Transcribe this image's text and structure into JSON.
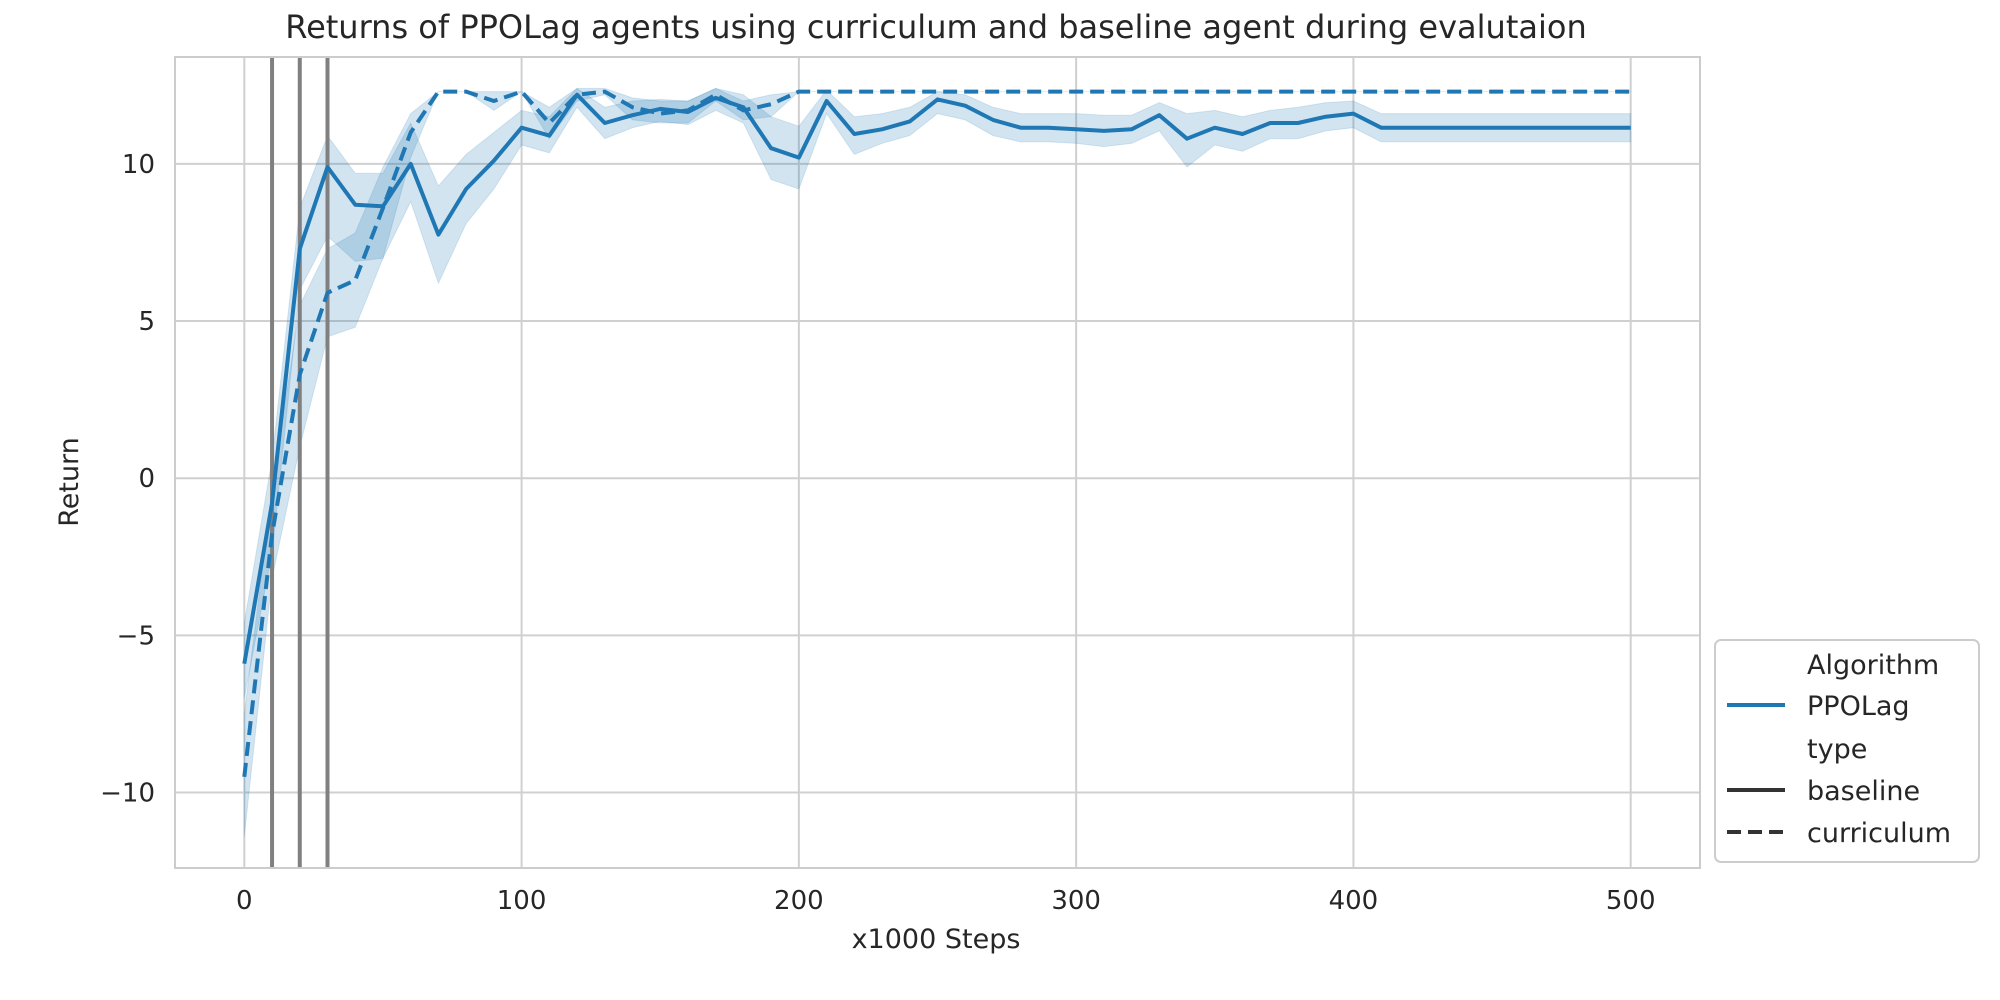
{
  "chart_data": {
    "type": "line",
    "title": "Returns of PPOLag agents using curriculum and baseline agent during evalutaion",
    "xlabel": "x1000 Steps",
    "ylabel": "Return",
    "xlim": [
      -25,
      525
    ],
    "ylim": [
      -12.4,
      13.4
    ],
    "xticks": [
      0,
      100,
      200,
      300,
      400,
      500
    ],
    "yticks": [
      -10,
      -5,
      0,
      5,
      10
    ],
    "xtick_labels": [
      "0",
      "100",
      "200",
      "300",
      "400",
      "500"
    ],
    "ytick_labels": [
      "−10",
      "−5",
      "0",
      "5",
      "10"
    ],
    "grid": true,
    "legend_position": "lower-right outside",
    "vlines": [
      10,
      20,
      30
    ],
    "colors": {
      "series": "#1f77b4",
      "band": "#1f77b4",
      "vline": "#808080",
      "grid": "#d0d0d0",
      "axis": "#cccccc",
      "legend_dark": "#333333"
    },
    "legend": {
      "header_algorithm": "Algorithm",
      "algorithm_entry": "PPOLag",
      "header_type": "type",
      "type_entry_solid": "baseline",
      "type_entry_dashed": "curriculum"
    },
    "x": [
      0,
      10,
      20,
      30,
      40,
      50,
      60,
      70,
      80,
      90,
      100,
      110,
      120,
      130,
      140,
      150,
      160,
      170,
      180,
      190,
      200,
      210,
      220,
      230,
      240,
      250,
      260,
      270,
      280,
      290,
      300,
      310,
      320,
      330,
      340,
      350,
      360,
      370,
      380,
      390,
      400,
      410,
      420,
      430,
      440,
      450,
      460,
      470,
      480,
      490,
      500
    ],
    "series": [
      {
        "name": "baseline",
        "style": "solid",
        "values": [
          -5.9,
          -0.8,
          7.3,
          9.9,
          8.7,
          8.65,
          10.0,
          7.75,
          9.2,
          10.1,
          11.15,
          10.9,
          12.2,
          11.3,
          11.55,
          11.75,
          11.65,
          12.1,
          11.8,
          10.5,
          10.2,
          12.0,
          10.95,
          11.1,
          11.35,
          12.05,
          11.85,
          11.4,
          11.15,
          11.15,
          11.1,
          11.05,
          11.1,
          11.55,
          10.8,
          11.15,
          10.95,
          11.3,
          11.3,
          11.5,
          11.6,
          11.15,
          11.15,
          11.15,
          11.15,
          11.15,
          11.15,
          11.15,
          11.15,
          11.15,
          11.15
        ],
        "lower": [
          -7.0,
          -2.4,
          6.0,
          7.7,
          6.9,
          7.0,
          8.8,
          6.2,
          8.1,
          9.2,
          10.6,
          10.35,
          11.8,
          10.8,
          11.15,
          11.35,
          11.25,
          11.7,
          11.3,
          9.5,
          9.2,
          11.6,
          10.3,
          10.65,
          10.9,
          11.6,
          11.4,
          10.9,
          10.7,
          10.7,
          10.65,
          10.55,
          10.65,
          11.05,
          9.9,
          10.6,
          10.4,
          10.8,
          10.8,
          11.05,
          11.15,
          10.7,
          10.7,
          10.7,
          10.7,
          10.7,
          10.7,
          10.7,
          10.7,
          10.7,
          10.7
        ],
        "upper": [
          -4.6,
          0.6,
          8.6,
          10.9,
          9.7,
          9.7,
          11.3,
          9.3,
          10.3,
          11.0,
          11.7,
          11.5,
          12.4,
          11.8,
          12.0,
          12.05,
          12.0,
          12.4,
          12.2,
          11.5,
          11.2,
          12.35,
          11.5,
          11.6,
          11.8,
          12.3,
          12.2,
          11.8,
          11.6,
          11.6,
          11.6,
          11.55,
          11.55,
          11.95,
          11.6,
          11.7,
          11.5,
          11.7,
          11.8,
          11.95,
          12.0,
          11.6,
          11.6,
          11.6,
          11.6,
          11.6,
          11.6,
          11.6,
          11.6,
          11.6,
          11.6
        ]
      },
      {
        "name": "curriculum",
        "style": "dashed",
        "values": [
          -9.5,
          -1.8,
          3.3,
          5.9,
          6.3,
          8.6,
          11.0,
          12.3,
          12.3,
          12.0,
          12.3,
          11.3,
          12.2,
          12.3,
          11.8,
          11.6,
          11.7,
          12.2,
          11.7,
          11.9,
          12.3,
          12.3,
          12.3,
          12.3,
          12.3,
          12.3,
          12.3,
          12.3,
          12.3,
          12.3,
          12.3,
          12.3,
          12.3,
          12.3,
          12.3,
          12.3,
          12.3,
          12.3,
          12.3,
          12.3,
          12.3,
          12.3,
          12.3,
          12.3,
          12.3,
          12.3,
          12.3,
          12.3,
          12.3,
          12.3,
          12.3
        ],
        "lower": [
          -11.4,
          -3.2,
          1.0,
          4.5,
          4.8,
          7.0,
          10.2,
          12.3,
          12.3,
          11.7,
          12.3,
          10.8,
          12.0,
          12.2,
          11.4,
          11.3,
          11.3,
          12.0,
          11.4,
          11.5,
          12.3,
          12.3,
          12.3,
          12.3,
          12.3,
          12.3,
          12.3,
          12.3,
          12.3,
          12.3,
          12.3,
          12.3,
          12.3,
          12.3,
          12.3,
          12.3,
          12.3,
          12.3,
          12.3,
          12.3,
          12.3,
          12.3,
          12.3,
          12.3,
          12.3,
          12.3,
          12.3,
          12.3,
          12.3,
          12.3,
          12.3
        ],
        "upper": [
          -7.5,
          -0.4,
          5.5,
          7.3,
          7.8,
          9.9,
          11.6,
          12.3,
          12.3,
          12.3,
          12.3,
          11.8,
          12.4,
          12.4,
          12.1,
          12.0,
          12.0,
          12.4,
          12.0,
          12.2,
          12.3,
          12.3,
          12.3,
          12.3,
          12.3,
          12.3,
          12.3,
          12.3,
          12.3,
          12.3,
          12.3,
          12.3,
          12.3,
          12.3,
          12.3,
          12.3,
          12.3,
          12.3,
          12.3,
          12.3,
          12.3,
          12.3,
          12.3,
          12.3,
          12.3,
          12.3,
          12.3,
          12.3,
          12.3,
          12.3,
          12.3
        ]
      }
    ]
  }
}
